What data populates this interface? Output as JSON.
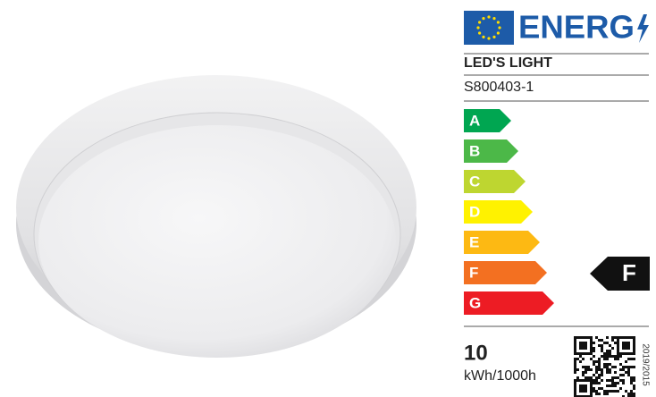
{
  "label": {
    "header": "ENERG",
    "supplier": "LED'S LIGHT",
    "model": "S800403-1",
    "classes": [
      "A",
      "B",
      "C",
      "D",
      "E",
      "F",
      "G"
    ],
    "rating": "F",
    "consumption": "10",
    "unit": "kWh/1000h",
    "regulation": "2019/2015"
  }
}
